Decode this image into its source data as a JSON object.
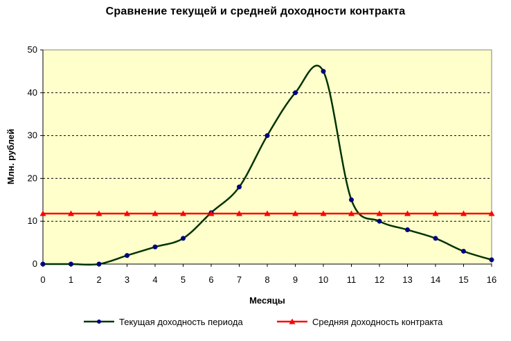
{
  "chart_data": {
    "type": "line",
    "title": "Сравнение текущей и средней доходности контракта",
    "xlabel": "Месяцы",
    "ylabel": "Млн. рублей",
    "x": [
      0,
      1,
      2,
      3,
      4,
      5,
      6,
      7,
      8,
      9,
      10,
      11,
      12,
      13,
      14,
      15,
      16
    ],
    "xlim": [
      0,
      16
    ],
    "ylim": [
      0,
      50
    ],
    "yticks": [
      0,
      10,
      20,
      30,
      40,
      50
    ],
    "grid": "horizontal dashed",
    "plot_background": "#FFFFCC",
    "legend_position": "bottom",
    "series": [
      {
        "name": "Текущая доходность периода",
        "values": [
          0,
          0,
          0,
          2,
          4,
          6,
          12,
          18,
          30,
          40,
          45,
          15,
          10,
          8,
          6,
          3,
          1
        ],
        "color": "#003300",
        "marker": "circle",
        "marker_color": "#000080"
      },
      {
        "name": "Средняя доходность контракта",
        "values": [
          11.8,
          11.8,
          11.8,
          11.8,
          11.8,
          11.8,
          11.8,
          11.8,
          11.8,
          11.8,
          11.8,
          11.8,
          11.8,
          11.8,
          11.8,
          11.8,
          11.8
        ],
        "color": "#FF0000",
        "marker": "triangle",
        "marker_color": "#FF0000"
      }
    ]
  }
}
